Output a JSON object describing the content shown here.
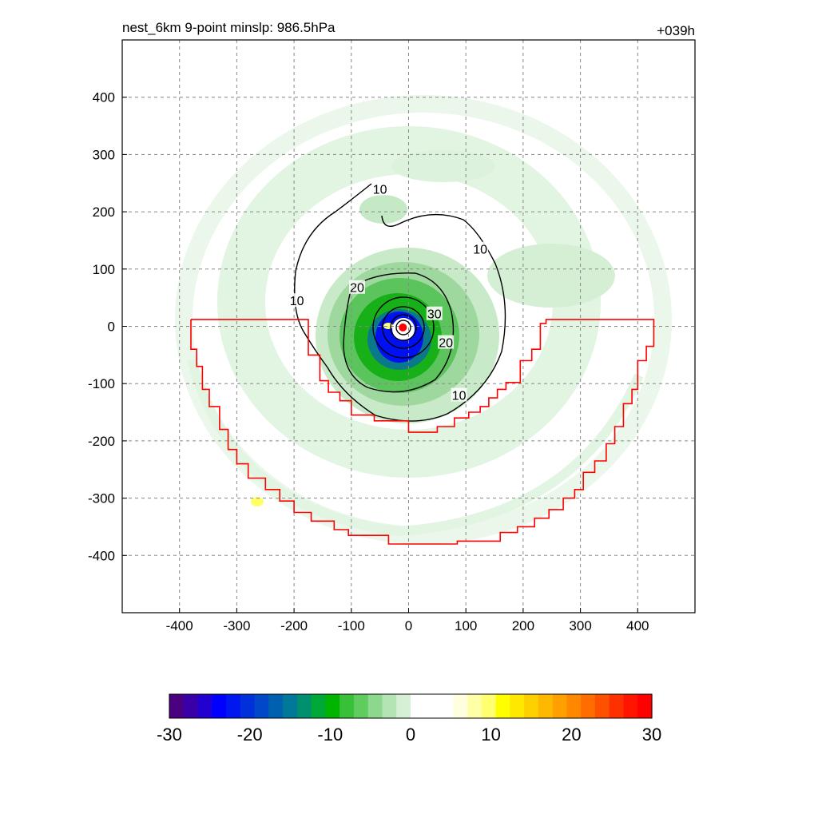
{
  "chart_data": {
    "type": "heatmap",
    "title": "nest_6km  9-point minslp: 986.5hPa",
    "forecast_hour": "+039h",
    "xlim": [
      -500,
      500
    ],
    "ylim": [
      -500,
      500
    ],
    "x_ticks": [
      -400,
      -300,
      -200,
      -100,
      0,
      100,
      200,
      300,
      400
    ],
    "y_ticks": [
      -400,
      -300,
      -200,
      -100,
      0,
      100,
      200,
      300,
      400
    ],
    "x_tick_labels": [
      "-400",
      "-300",
      "-200",
      "-100",
      "0",
      "100",
      "200",
      "300",
      "400"
    ],
    "y_tick_labels": [
      "-400",
      "-300",
      "-200",
      "-100",
      "0",
      "100",
      "200",
      "300",
      "400"
    ],
    "grid": "dashed",
    "colorbar": {
      "orientation": "horizontal",
      "placement": "bottom",
      "range": [
        -30,
        30
      ],
      "tick_values": [
        -30,
        -20,
        -10,
        0,
        10,
        20,
        30
      ],
      "tick_labels": [
        "-30",
        "-20",
        "-10",
        "0",
        "10",
        "20",
        "30"
      ],
      "colors": [
        "#4b0082",
        "#3a00a8",
        "#2200d0",
        "#0000ff",
        "#0018ee",
        "#0030dc",
        "#0048c8",
        "#0060b0",
        "#007898",
        "#009070",
        "#00a838",
        "#00b400",
        "#38c038",
        "#60cc60",
        "#8cd88c",
        "#b4e4b4",
        "#d6f0d6",
        "#ffffff",
        "#ffffff",
        "#ffffff",
        "#ffffe0",
        "#ffffa8",
        "#ffff70",
        "#ffff00",
        "#ffe800",
        "#ffd000",
        "#ffb800",
        "#ffa000",
        "#ff8800",
        "#ff6c00",
        "#ff5000",
        "#ff3000",
        "#ff1400",
        "#ff0000"
      ]
    },
    "contour_labels": [
      {
        "text": "10",
        "x": -50,
        "y": 240
      },
      {
        "text": "10",
        "x": 125,
        "y": 135
      },
      {
        "text": "10",
        "x": -195,
        "y": 45
      },
      {
        "text": "10",
        "x": 88,
        "y": -120
      },
      {
        "text": "20",
        "x": -90,
        "y": 68
      },
      {
        "text": "20",
        "x": 65,
        "y": -28
      },
      {
        "text": "30",
        "x": 45,
        "y": 22
      }
    ],
    "storm_center": {
      "x": -10,
      "y": -2,
      "color": "#ff0000"
    },
    "outline_color": "#ff0000",
    "outline_polygon": [
      [
        -380,
        12
      ],
      [
        -175,
        12
      ],
      [
        -175,
        -50
      ],
      [
        -155,
        -50
      ],
      [
        -155,
        -95
      ],
      [
        -140,
        -95
      ],
      [
        -140,
        -115
      ],
      [
        -120,
        -115
      ],
      [
        -120,
        -130
      ],
      [
        -100,
        -130
      ],
      [
        -100,
        -155
      ],
      [
        -60,
        -155
      ],
      [
        -60,
        -165
      ],
      [
        0,
        -165
      ],
      [
        0,
        -185
      ],
      [
        50,
        -185
      ],
      [
        50,
        -175
      ],
      [
        80,
        -175
      ],
      [
        80,
        -160
      ],
      [
        105,
        -160
      ],
      [
        105,
        -150
      ],
      [
        125,
        -150
      ],
      [
        125,
        -140
      ],
      [
        140,
        -140
      ],
      [
        140,
        -125
      ],
      [
        155,
        -125
      ],
      [
        155,
        -110
      ],
      [
        170,
        -110
      ],
      [
        170,
        -98
      ],
      [
        195,
        -98
      ],
      [
        195,
        -60
      ],
      [
        215,
        -60
      ],
      [
        215,
        -40
      ],
      [
        230,
        -40
      ],
      [
        230,
        5
      ],
      [
        240,
        5
      ],
      [
        240,
        12
      ],
      [
        428,
        12
      ],
      [
        428,
        -35
      ],
      [
        415,
        -35
      ],
      [
        415,
        -60
      ],
      [
        400,
        -60
      ],
      [
        400,
        -110
      ],
      [
        390,
        -110
      ],
      [
        390,
        -135
      ],
      [
        375,
        -135
      ],
      [
        375,
        -175
      ],
      [
        360,
        -175
      ],
      [
        360,
        -205
      ],
      [
        345,
        -205
      ],
      [
        345,
        -235
      ],
      [
        325,
        -235
      ],
      [
        325,
        -255
      ],
      [
        305,
        -255
      ],
      [
        305,
        -285
      ],
      [
        290,
        -285
      ],
      [
        290,
        -300
      ],
      [
        270,
        -300
      ],
      [
        270,
        -320
      ],
      [
        245,
        -320
      ],
      [
        245,
        -335
      ],
      [
        220,
        -335
      ],
      [
        220,
        -350
      ],
      [
        190,
        -350
      ],
      [
        190,
        -360
      ],
      [
        160,
        -360
      ],
      [
        160,
        -375
      ],
      [
        85,
        -375
      ],
      [
        85,
        -380
      ],
      [
        -35,
        -380
      ],
      [
        -35,
        -365
      ],
      [
        -105,
        -365
      ],
      [
        -105,
        -355
      ],
      [
        -130,
        -355
      ],
      [
        -130,
        -340
      ],
      [
        -170,
        -340
      ],
      [
        -170,
        -325
      ],
      [
        -200,
        -325
      ],
      [
        -200,
        -305
      ],
      [
        -225,
        -305
      ],
      [
        -225,
        -285
      ],
      [
        -250,
        -285
      ],
      [
        -250,
        -265
      ],
      [
        -280,
        -265
      ],
      [
        -280,
        -240
      ],
      [
        -300,
        -240
      ],
      [
        -300,
        -215
      ],
      [
        -315,
        -215
      ],
      [
        -315,
        -180
      ],
      [
        -330,
        -180
      ],
      [
        -330,
        -140
      ],
      [
        -348,
        -140
      ],
      [
        -348,
        -110
      ],
      [
        -360,
        -110
      ],
      [
        -360,
        -70
      ],
      [
        -370,
        -70
      ],
      [
        -370,
        -40
      ],
      [
        -380,
        -40
      ]
    ]
  }
}
